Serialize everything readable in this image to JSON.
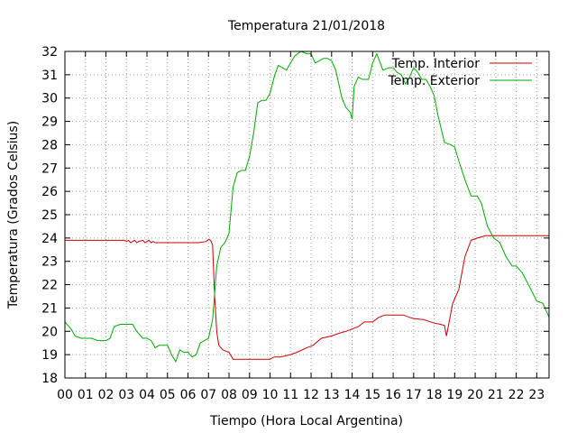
{
  "chart_data": {
    "type": "line",
    "title": "Temperatura 21/01/2018",
    "xlabel": "Tiempo (Hora Local Argentina)",
    "ylabel": "Temperatura (Grados Celsius)",
    "xlim": [
      0,
      23.6
    ],
    "ylim": [
      18,
      32
    ],
    "xticks": [
      0,
      1,
      2,
      3,
      4,
      5,
      6,
      7,
      8,
      9,
      10,
      11,
      12,
      13,
      14,
      15,
      16,
      17,
      18,
      19,
      20,
      21,
      22,
      23
    ],
    "xtick_labels": [
      "00",
      "01",
      "02",
      "03",
      "04",
      "05",
      "06",
      "07",
      "08",
      "09",
      "10",
      "11",
      "12",
      "13",
      "14",
      "15",
      "16",
      "17",
      "18",
      "19",
      "20",
      "21",
      "22",
      "23"
    ],
    "yticks": [
      18,
      19,
      20,
      21,
      22,
      23,
      24,
      25,
      26,
      27,
      28,
      29,
      30,
      31,
      32
    ],
    "ytick_labels": [
      "18",
      "19",
      "20",
      "21",
      "22",
      "23",
      "24",
      "25",
      "26",
      "27",
      "28",
      "29",
      "30",
      "31",
      "32"
    ],
    "grid": true,
    "legend_position": "top-right",
    "series": [
      {
        "name": "Temp. Interior",
        "color": "#cc0000",
        "x": [
          0,
          1,
          2,
          2.9,
          3.0,
          3.1,
          3.2,
          3.3,
          3.4,
          3.5,
          3.6,
          3.8,
          3.9,
          4.0,
          4.1,
          4.2,
          4.3,
          4.4,
          4.5,
          5,
          5.5,
          6,
          6.5,
          6.9,
          7.0,
          7.1,
          7.15,
          7.2,
          7.3,
          7.4,
          7.5,
          7.7,
          8.0,
          8.2,
          8.5,
          9,
          9.5,
          10,
          10.2,
          10.5,
          11,
          11.3,
          11.8,
          12.1,
          12.5,
          13,
          13.3,
          13.7,
          14,
          14.3,
          14.6,
          15,
          15.3,
          15.6,
          16,
          16.5,
          16.8,
          17,
          17.5,
          18,
          18.3,
          18.5,
          18.6,
          18.9,
          19.2,
          19.5,
          19.8,
          20.1,
          20.3,
          20.5,
          21,
          21.5,
          22,
          22.5,
          23,
          23.6
        ],
        "values": [
          23.9,
          23.9,
          23.9,
          23.9,
          23.85,
          23.9,
          23.8,
          23.85,
          23.9,
          23.8,
          23.85,
          23.9,
          23.8,
          23.85,
          23.9,
          23.8,
          23.85,
          23.8,
          23.8,
          23.8,
          23.8,
          23.8,
          23.8,
          23.85,
          23.95,
          23.9,
          23.8,
          23.7,
          21.5,
          20.0,
          19.4,
          19.2,
          19.1,
          18.8,
          18.8,
          18.8,
          18.8,
          18.8,
          18.9,
          18.9,
          19.0,
          19.1,
          19.3,
          19.4,
          19.7,
          19.8,
          19.9,
          20.0,
          20.1,
          20.2,
          20.4,
          20.4,
          20.6,
          20.7,
          20.7,
          20.7,
          20.6,
          20.55,
          20.5,
          20.35,
          20.3,
          20.25,
          19.8,
          21.2,
          21.8,
          23.2,
          23.9,
          24.0,
          24.05,
          24.1,
          24.1,
          24.1,
          24.1,
          24.1,
          24.1,
          24.1
        ]
      },
      {
        "name": "Temp. Exterior",
        "color": "#00aa00",
        "x": [
          0,
          0.3,
          0.5,
          0.8,
          1.0,
          1.3,
          1.6,
          2.0,
          2.2,
          2.4,
          2.7,
          3.0,
          3.3,
          3.5,
          3.8,
          4.0,
          4.2,
          4.4,
          4.6,
          4.8,
          5.0,
          5.2,
          5.4,
          5.6,
          5.8,
          6.0,
          6.2,
          6.4,
          6.6,
          6.8,
          7.0,
          7.2,
          7.4,
          7.6,
          7.8,
          8.0,
          8.2,
          8.4,
          8.6,
          8.8,
          9.0,
          9.2,
          9.4,
          9.6,
          9.8,
          10.0,
          10.2,
          10.4,
          10.6,
          10.8,
          11.0,
          11.2,
          11.5,
          11.8,
          12.0,
          12.2,
          12.4,
          12.6,
          12.8,
          13.0,
          13.2,
          13.5,
          13.7,
          13.9,
          14.0,
          14.1,
          14.3,
          14.5,
          14.8,
          15.0,
          15.2,
          15.5,
          15.8,
          16.0,
          16.2,
          16.4,
          16.6,
          16.8,
          17.0,
          17.2,
          17.4,
          17.6,
          17.8,
          18.0,
          18.2,
          18.5,
          18.8,
          19.0,
          19.2,
          19.5,
          19.8,
          20.1,
          20.3,
          20.6,
          20.9,
          21.2,
          21.5,
          21.8,
          22.0,
          22.3,
          22.6,
          23.0,
          23.3,
          23.6
        ],
        "values": [
          20.4,
          20.1,
          19.8,
          19.7,
          19.7,
          19.7,
          19.6,
          19.6,
          19.7,
          20.2,
          20.3,
          20.3,
          20.3,
          20.0,
          19.7,
          19.7,
          19.6,
          19.3,
          19.4,
          19.4,
          19.4,
          19.0,
          18.7,
          19.2,
          19.1,
          19.1,
          18.9,
          19.0,
          19.5,
          19.6,
          19.7,
          20.5,
          22.8,
          23.6,
          23.8,
          24.2,
          26.2,
          26.8,
          26.9,
          26.9,
          27.5,
          28.5,
          29.8,
          29.9,
          29.9,
          30.2,
          30.9,
          31.4,
          31.3,
          31.2,
          31.5,
          31.8,
          32.0,
          31.9,
          31.9,
          31.5,
          31.6,
          31.7,
          31.7,
          31.6,
          31.2,
          30.0,
          29.6,
          29.4,
          29.1,
          30.5,
          30.9,
          30.8,
          30.8,
          31.5,
          31.9,
          31.2,
          31.3,
          31.3,
          31.1,
          31.0,
          30.6,
          30.9,
          31.3,
          31.1,
          30.8,
          30.8,
          30.5,
          30.1,
          29.2,
          28.1,
          28.0,
          27.9,
          27.3,
          26.5,
          25.8,
          25.8,
          25.5,
          24.5,
          24.0,
          23.8,
          23.2,
          22.8,
          22.8,
          22.5,
          22.0,
          21.3,
          21.2,
          20.6
        ]
      }
    ]
  }
}
